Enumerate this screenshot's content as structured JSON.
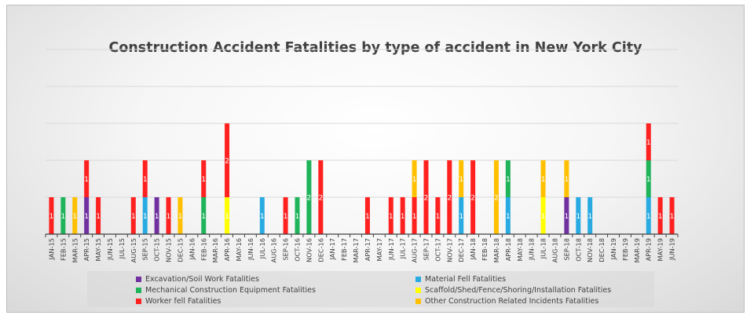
{
  "chart_data": {
    "type": "bar",
    "stacked": true,
    "title": "Construction Accident Fatalities by type of accident in New York City",
    "xlabel": "",
    "ylabel": "",
    "ylim": [
      0,
      5
    ],
    "grid": true,
    "legend_position": "bottom",
    "categories": [
      "JAN-15",
      "FEB-15",
      "MAR-15",
      "APR-15",
      "MAY-15",
      "JUN-15",
      "JUL-15",
      "AUG-15",
      "SEP-15",
      "OCT-15",
      "NOV-15",
      "DEC-15",
      "JAN-16",
      "FEB-16",
      "MAR-16",
      "APR-16",
      "MAY-16",
      "JUN-16",
      "JUL-16",
      "AUG-16",
      "SEP-16",
      "OCT-16",
      "NOV-16",
      "DEC-16",
      "JAN-17",
      "FEB-17",
      "MAR-17",
      "APR-17",
      "MAY-17",
      "JUN-17",
      "JUL-17",
      "AUG-17",
      "SEP-17",
      "OCT-17",
      "NOV-17",
      "DEC-17",
      "JAN-18",
      "FEB-18",
      "MAR-18",
      "APR-18",
      "MAY-18",
      "JUN-18",
      "JUL-18",
      "AUG-18",
      "SEP-18",
      "OCT-18",
      "NOV-18",
      "DEC-18",
      "JAN-19",
      "FEB-19",
      "MAR-19",
      "APR-19",
      "MAY-19",
      "JUN-19"
    ],
    "series": [
      {
        "name": "Excavation/Soil Work Fatalities",
        "color": "#7030a0",
        "values": [
          0,
          0,
          0,
          1,
          0,
          0,
          0,
          0,
          0,
          1,
          0,
          0,
          0,
          0,
          0,
          0,
          0,
          0,
          0,
          0,
          0,
          0,
          0,
          0,
          0,
          0,
          0,
          0,
          0,
          0,
          0,
          0,
          0,
          0,
          0,
          0,
          0,
          0,
          0,
          0,
          0,
          0,
          0,
          0,
          1,
          0,
          0,
          0,
          0,
          0,
          0,
          0,
          0,
          0
        ]
      },
      {
        "name": "Material Fell Fatalities",
        "color": "#29abe2",
        "values": [
          0,
          0,
          0,
          0,
          0,
          0,
          0,
          0,
          1,
          0,
          0,
          0,
          0,
          0,
          0,
          0,
          0,
          0,
          1,
          0,
          0,
          0,
          0,
          0,
          0,
          0,
          0,
          0,
          0,
          0,
          0,
          0,
          0,
          0,
          0,
          1,
          0,
          0,
          0,
          1,
          0,
          0,
          0,
          0,
          0,
          1,
          1,
          0,
          0,
          0,
          0,
          1,
          0,
          0
        ]
      },
      {
        "name": "Mechanical Construction Equipment Fatalities",
        "color": "#1fb35a",
        "values": [
          0,
          1,
          0,
          0,
          0,
          0,
          0,
          0,
          0,
          0,
          0,
          0,
          0,
          1,
          0,
          0,
          0,
          0,
          0,
          0,
          0,
          1,
          2,
          0,
          0,
          0,
          0,
          0,
          0,
          0,
          0,
          0,
          0,
          0,
          0,
          0,
          0,
          0,
          0,
          1,
          0,
          0,
          0,
          0,
          0,
          0,
          0,
          0,
          0,
          0,
          0,
          1,
          0,
          0
        ]
      },
      {
        "name": "Scaffold/Shed/Fence/Shoring/Installation Fatalities",
        "color": "#ffff00",
        "values": [
          0,
          0,
          0,
          0,
          0,
          0,
          0,
          0,
          0,
          0,
          0,
          0,
          0,
          0,
          0,
          1,
          0,
          0,
          0,
          0,
          0,
          0,
          0,
          0,
          0,
          0,
          0,
          0,
          0,
          0,
          0,
          0,
          0,
          0,
          0,
          0,
          0,
          0,
          0,
          0,
          0,
          0,
          1,
          0,
          0,
          0,
          0,
          0,
          0,
          0,
          0,
          0,
          0,
          0
        ]
      },
      {
        "name": "Worker fell Fatalities",
        "color": "#ff2020",
        "values": [
          1,
          0,
          0,
          1,
          1,
          0,
          0,
          1,
          1,
          0,
          1,
          0,
          0,
          1,
          0,
          2,
          0,
          0,
          0,
          0,
          1,
          0,
          0,
          2,
          0,
          0,
          0,
          1,
          0,
          1,
          1,
          1,
          2,
          1,
          2,
          0,
          2,
          0,
          0,
          0,
          0,
          0,
          0,
          0,
          0,
          0,
          0,
          0,
          0,
          0,
          0,
          1,
          1,
          1
        ]
      },
      {
        "name": "Other Construction Related Incidents Fatalities",
        "color": "#ffc000",
        "values": [
          0,
          0,
          1,
          0,
          0,
          0,
          0,
          0,
          0,
          0,
          0,
          1,
          0,
          0,
          0,
          0,
          0,
          0,
          0,
          0,
          0,
          0,
          0,
          0,
          0,
          0,
          0,
          0,
          0,
          0,
          0,
          1,
          0,
          0,
          0,
          1,
          0,
          0,
          2,
          0,
          0,
          0,
          1,
          0,
          1,
          0,
          0,
          0,
          0,
          0,
          0,
          0,
          0,
          0
        ]
      }
    ],
    "data_labels": [
      {
        "category": "JAN-15",
        "series": "Worker fell Fatalities",
        "text": "1"
      },
      {
        "category": "FEB-15",
        "series": "Mechanical Construction Equipment Fatalities",
        "text": "1"
      },
      {
        "category": "MAR-15",
        "series": "Other Construction Related Incidents Fatalities",
        "text": "1"
      },
      {
        "category": "APR-15",
        "series": "Excavation/Soil Work Fatalities",
        "text": "1"
      },
      {
        "category": "APR-15",
        "series": "Worker fell Fatalities",
        "text": "1"
      },
      {
        "category": "MAY-15",
        "series": "Worker fell Fatalities",
        "text": "1"
      },
      {
        "category": "AUG-15",
        "series": "Worker fell Fatalities",
        "text": "1"
      },
      {
        "category": "SEP-15",
        "series": "Material Fell Fatalities",
        "text": "1"
      },
      {
        "category": "SEP-15",
        "series": "Worker fell Fatalities",
        "text": "1"
      },
      {
        "category": "OCT-15",
        "series": "Excavation/Soil Work Fatalities",
        "text": "1"
      },
      {
        "category": "NOV-15",
        "series": "Worker fell Fatalities",
        "text": "1"
      },
      {
        "category": "DEC-15",
        "series": "Other Construction Related Incidents Fatalities",
        "text": "1"
      },
      {
        "category": "FEB-16",
        "series": "Mechanical Construction Equipment Fatalities",
        "text": "1"
      },
      {
        "category": "FEB-16",
        "series": "Worker fell Fatalities",
        "text": "1"
      },
      {
        "category": "APR-16",
        "series": "Scaffold/Shed/Fence/Shoring/Installation Fatalities",
        "text": "1"
      },
      {
        "category": "APR-16",
        "series": "Worker fell Fatalities",
        "text": "2"
      },
      {
        "category": "JUL-16",
        "series": "Material Fell Fatalities",
        "text": "1"
      },
      {
        "category": "SEP-16",
        "series": "Worker fell Fatalities",
        "text": "1"
      },
      {
        "category": "OCT-16",
        "series": "Mechanical Construction Equipment Fatalities",
        "text": "1"
      },
      {
        "category": "NOV-16",
        "series": "Mechanical Construction Equipment Fatalities",
        "text": "2"
      },
      {
        "category": "DEC-16",
        "series": "Worker fell Fatalities",
        "text": "2"
      },
      {
        "category": "APR-17",
        "series": "Worker fell Fatalities",
        "text": "1"
      },
      {
        "category": "JUN-17",
        "series": "Worker fell Fatalities",
        "text": "1"
      },
      {
        "category": "JUL-17",
        "series": "Worker fell Fatalities",
        "text": "1"
      },
      {
        "category": "AUG-17",
        "series": "Worker fell Fatalities",
        "text": "1"
      },
      {
        "category": "AUG-17",
        "series": "Other Construction Related Incidents Fatalities",
        "text": "1"
      },
      {
        "category": "SEP-17",
        "series": "Worker fell Fatalities",
        "text": "2"
      },
      {
        "category": "OCT-17",
        "series": "Worker fell Fatalities",
        "text": "1"
      },
      {
        "category": "NOV-17",
        "series": "Worker fell Fatalities",
        "text": "2"
      },
      {
        "category": "DEC-17",
        "series": "Material Fell Fatalities",
        "text": "1"
      },
      {
        "category": "DEC-17",
        "series": "Other Construction Related Incidents Fatalities",
        "text": "1"
      },
      {
        "category": "JAN-18",
        "series": "Worker fell Fatalities",
        "text": "2"
      },
      {
        "category": "MAR-18",
        "series": "Other Construction Related Incidents Fatalities",
        "text": "2"
      },
      {
        "category": "APR-18",
        "series": "Material Fell Fatalities",
        "text": "1"
      },
      {
        "category": "APR-18",
        "series": "Mechanical Construction Equipment Fatalities",
        "text": "1"
      },
      {
        "category": "JUL-18",
        "series": "Scaffold/Shed/Fence/Shoring/Installation Fatalities",
        "text": "1"
      },
      {
        "category": "JUL-18",
        "series": "Other Construction Related Incidents Fatalities",
        "text": "1"
      },
      {
        "category": "SEP-18",
        "series": "Excavation/Soil Work Fatalities",
        "text": "1"
      },
      {
        "category": "SEP-18",
        "series": "Other Construction Related Incidents Fatalities",
        "text": "1"
      },
      {
        "category": "OCT-18",
        "series": "Material Fell Fatalities",
        "text": "1"
      },
      {
        "category": "NOV-18",
        "series": "Material Fell Fatalities",
        "text": "1"
      },
      {
        "category": "APR-19",
        "series": "Material Fell Fatalities",
        "text": "1"
      },
      {
        "category": "APR-19",
        "series": "Mechanical Construction Equipment Fatalities",
        "text": "1"
      },
      {
        "category": "APR-19",
        "series": "Worker fell Fatalities",
        "text": "1"
      },
      {
        "category": "MAY-19",
        "series": "Worker fell Fatalities",
        "text": "1"
      },
      {
        "category": "JUN-19",
        "series": "Worker fell Fatalities",
        "text": "1"
      }
    ],
    "legend_order": [
      "Excavation/Soil Work Fatalities",
      "Material Fell Fatalities",
      "Mechanical Construction Equipment Fatalities",
      "Scaffold/Shed/Fence/Shoring/Installation Fatalities",
      "Worker fell Fatalities",
      "Other Construction Related Incidents Fatalities"
    ]
  }
}
